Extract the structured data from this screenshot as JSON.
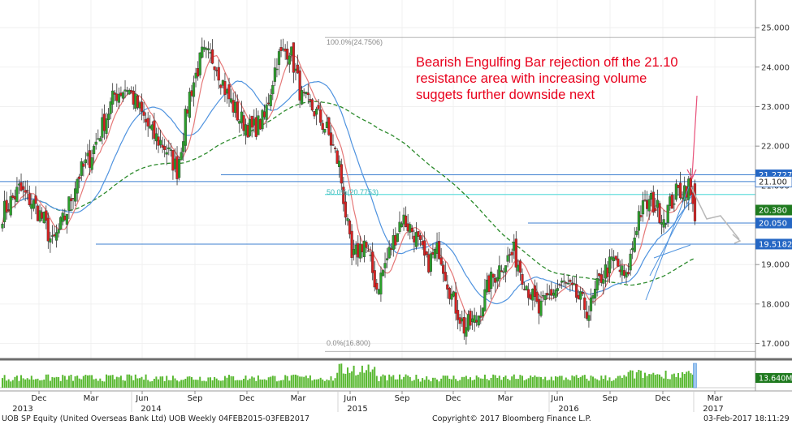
{
  "chart_data": {
    "type": "candlestick",
    "ylim": [
      16.6,
      25.7
    ],
    "y_ticks": [
      "17.000",
      "18.000",
      "19.000",
      "20.000",
      "21.000",
      "22.000",
      "23.000",
      "24.000",
      "25.000"
    ],
    "x_month_labels": [
      "Dec",
      "Mar",
      "Jun",
      "Sep",
      "Dec",
      "Mar",
      "Jun",
      "Sep",
      "Dec",
      "Mar",
      "Jun",
      "Sep",
      "Dec",
      "Mar"
    ],
    "x_year_labels": [
      "2013",
      "2014",
      "2015",
      "2016",
      "2017"
    ],
    "annotation": "Bearish Engulfing Bar rejection off the 21.10 resistance area with increasing volume suggets further downside next",
    "fib_labels": {
      "top": "100.0%(24.7506)",
      "mid": "50.0%(20.7753)",
      "bottom": "0.0%(16.800)"
    },
    "price_tags": [
      "21.2727",
      "21.100",
      "20.380",
      "20.050",
      "19.5182"
    ],
    "volume_tag": "13.640M",
    "horizontal_levels": [
      24.7506,
      21.2727,
      21.1,
      20.7753,
      20.05,
      19.5182,
      16.8
    ],
    "close_waypoints": [
      [
        0,
        20.3
      ],
      [
        8,
        20.9
      ],
      [
        14,
        20.6
      ],
      [
        20,
        20.1
      ],
      [
        24,
        19.5
      ],
      [
        30,
        20.2
      ],
      [
        36,
        21.2
      ],
      [
        42,
        21.7
      ],
      [
        48,
        22.5
      ],
      [
        54,
        23.3
      ],
      [
        60,
        23.5
      ],
      [
        66,
        22.9
      ],
      [
        72,
        22.3
      ],
      [
        78,
        22.0
      ],
      [
        84,
        21.4
      ],
      [
        90,
        23.3
      ],
      [
        96,
        24.3
      ],
      [
        102,
        24.2
      ],
      [
        108,
        23.3
      ],
      [
        114,
        22.7
      ],
      [
        120,
        22.4
      ],
      [
        126,
        22.7
      ],
      [
        132,
        24.2
      ],
      [
        138,
        24.5
      ],
      [
        144,
        23.2
      ],
      [
        150,
        22.9
      ],
      [
        156,
        22.4
      ],
      [
        162,
        21.5
      ],
      [
        168,
        19.1
      ],
      [
        174,
        19.6
      ],
      [
        180,
        18.4
      ],
      [
        186,
        19.3
      ],
      [
        192,
        20.2
      ],
      [
        198,
        19.8
      ],
      [
        204,
        19.0
      ],
      [
        210,
        19.4
      ],
      [
        216,
        18.2
      ],
      [
        222,
        17.4
      ],
      [
        228,
        17.6
      ],
      [
        234,
        18.5
      ],
      [
        240,
        19.0
      ],
      [
        246,
        19.3
      ],
      [
        252,
        18.5
      ],
      [
        258,
        17.8
      ],
      [
        264,
        18.3
      ],
      [
        270,
        18.5
      ],
      [
        276,
        18.2
      ],
      [
        282,
        17.8
      ],
      [
        288,
        18.7
      ],
      [
        294,
        19.1
      ],
      [
        300,
        18.6
      ],
      [
        306,
        20.3
      ],
      [
        312,
        20.6
      ],
      [
        318,
        20.2
      ],
      [
        324,
        20.8
      ],
      [
        330,
        21.0
      ],
      [
        333,
        20.1
      ]
    ],
    "volume_levels": [
      0.3,
      0.55,
      0.8,
      1.0
    ],
    "colors": {
      "up": "#2ca02c",
      "down": "#d62020",
      "sma_fast": "#e57878",
      "sma_mid": "#4f93df",
      "sma_slow": "#2b8a2b",
      "level_line": "#3c7fd0",
      "fib_mid": "#66dddd",
      "annotation": "#e8001c",
      "trend": "#4f93df",
      "tag_blue": "#2567c4",
      "tag_green": "#1f7a1f",
      "volume": "#58b830"
    }
  },
  "footer": {
    "security": "UOB SP Equity (United Overseas Bank Ltd) UOB  Weekly 04FEB2015-03FEB2017",
    "copyright": "Copyright© 2017 Bloomberg Finance L.P.",
    "timestamp": "03-Feb-2017 18:11:29"
  }
}
